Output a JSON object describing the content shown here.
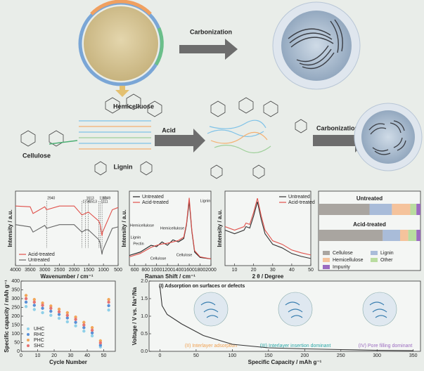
{
  "diagram": {
    "step1": "Carbonization",
    "hemicellulose": "Hemicelluose",
    "cellulose": "Cellulose",
    "lignin": "Lignin",
    "acid": "Acid",
    "step2": "Carbonization"
  },
  "chart_data": [
    {
      "type": "line",
      "xlabel": "Wavenumber / cm⁻¹",
      "ylabel": "Intensity / a.u.",
      "x": [
        4000,
        3500,
        3400,
        3000,
        2940,
        2500,
        2000,
        1735,
        1613,
        1513,
        1161,
        1111,
        1049,
        1030,
        700,
        500
      ],
      "xlim": [
        4000,
        500
      ],
      "ylim": [
        0,
        1
      ],
      "xticks": [
        4000,
        3500,
        3000,
        2500,
        2000,
        1500,
        1000,
        500
      ],
      "peak_labels": [
        2940,
        1735,
        1613,
        1513,
        1161,
        1111,
        1049
      ],
      "legend": "lower left",
      "series": [
        {
          "name": "Acid-treated",
          "color": "#e0504a",
          "values": [
            0.8,
            0.79,
            0.7,
            0.79,
            0.75,
            0.8,
            0.8,
            0.68,
            0.7,
            0.72,
            0.6,
            0.55,
            0.4,
            0.45,
            0.75,
            0.78
          ]
        },
        {
          "name": "Untreated",
          "color": "#666666",
          "values": [
            0.55,
            0.52,
            0.45,
            0.54,
            0.5,
            0.55,
            0.55,
            0.45,
            0.48,
            0.48,
            0.35,
            0.3,
            0.15,
            0.2,
            0.5,
            0.52
          ]
        }
      ]
    },
    {
      "type": "line",
      "xlabel": "Raman Shift / cm⁻¹",
      "ylabel": "Intensity / a.u.",
      "x": [
        500,
        700,
        900,
        1000,
        1100,
        1200,
        1300,
        1400,
        1500,
        1550,
        1600,
        1650,
        1700,
        1800,
        2000
      ],
      "xlim": [
        500,
        2000
      ],
      "ylim": [
        0,
        1.1
      ],
      "xticks": [
        600,
        800,
        1000,
        1200,
        1400,
        1600,
        1800,
        2000
      ],
      "labels": [
        "Lignin",
        "Hemicellulose",
        "Lignin",
        "Pectin",
        "Hemicellulose",
        "Cellulose",
        "Cellulose"
      ],
      "legend": "upper left",
      "series": [
        {
          "name": "Untreated",
          "color": "#222222",
          "values": [
            0.15,
            0.2,
            0.3,
            0.28,
            0.35,
            0.3,
            0.38,
            0.35,
            0.4,
            0.6,
            0.95,
            0.5,
            0.2,
            0.12,
            0.1
          ]
        },
        {
          "name": "Acid-treated",
          "color": "#e0504a",
          "values": [
            0.13,
            0.18,
            0.27,
            0.3,
            0.32,
            0.33,
            0.35,
            0.37,
            0.42,
            0.62,
            1.0,
            0.52,
            0.22,
            0.13,
            0.1
          ]
        }
      ]
    },
    {
      "type": "line",
      "xlabel": "2 θ / Degree",
      "ylabel": "Intensity / a.u.",
      "x": [
        5,
        10,
        15,
        16,
        18,
        20,
        22,
        24,
        26,
        30,
        35,
        40,
        45,
        50
      ],
      "xlim": [
        5,
        50
      ],
      "ylim": [
        0,
        1.05
      ],
      "xticks": [
        10,
        20,
        30,
        40,
        50
      ],
      "legend": "upper right",
      "series": [
        {
          "name": "Untreated",
          "color": "#333333",
          "values": [
            0.5,
            0.45,
            0.5,
            0.55,
            0.53,
            0.7,
            0.9,
            0.65,
            0.45,
            0.3,
            0.25,
            0.17,
            0.13,
            0.1
          ]
        },
        {
          "name": "Acid-treated",
          "color": "#e0504a",
          "values": [
            0.55,
            0.5,
            0.55,
            0.6,
            0.58,
            0.75,
            0.95,
            0.7,
            0.5,
            0.35,
            0.3,
            0.22,
            0.18,
            0.15
          ]
        }
      ]
    },
    {
      "type": "bar",
      "categories": [
        "Untreated",
        "Acid-treated"
      ],
      "xlim": [
        0,
        100
      ],
      "series": [
        {
          "name": "Cellulose",
          "color": "#a9a5a0",
          "values": [
            50,
            63
          ]
        },
        {
          "name": "Lignin",
          "color": "#a9bcd9",
          "values": [
            22,
            17
          ]
        },
        {
          "name": "Hemicellulose",
          "color": "#f5c39c",
          "values": [
            18,
            8
          ]
        },
        {
          "name": "Other",
          "color": "#b9dca0",
          "values": [
            6,
            8
          ]
        },
        {
          "name": "Impurity",
          "color": "#9b6bc0",
          "values": [
            4,
            4
          ]
        }
      ]
    },
    {
      "type": "scatter",
      "xlabel": "Cycle Number",
      "ylabel": "Specific capacity / mAh g⁻¹",
      "x": [
        3,
        8,
        13,
        18,
        23,
        28,
        33,
        38,
        43,
        48,
        53
      ],
      "xlim": [
        0,
        57
      ],
      "ylim": [
        0,
        400
      ],
      "xticks": [
        0,
        10,
        20,
        30,
        40,
        50
      ],
      "yticks": [
        0,
        50,
        100,
        150,
        200,
        250,
        300,
        350,
        400
      ],
      "legend": "lower left",
      "series": [
        {
          "name": "UHC",
          "color": "#8fd0e8",
          "values": [
            255,
            238,
            220,
            205,
            188,
            168,
            145,
            115,
            88,
            25,
            235
          ]
        },
        {
          "name": "RHC",
          "color": "#5a8fd6",
          "values": [
            280,
            262,
            245,
            228,
            210,
            190,
            165,
            135,
            105,
            35,
            260
          ]
        },
        {
          "name": "PHC",
          "color": "#f2a65a",
          "values": [
            318,
            295,
            275,
            258,
            240,
            220,
            195,
            165,
            135,
            60,
            295
          ]
        },
        {
          "name": "SHC",
          "color": "#e57373",
          "values": [
            300,
            280,
            262,
            245,
            225,
            205,
            182,
            150,
            120,
            48,
            280
          ]
        }
      ]
    },
    {
      "type": "line",
      "xlabel": "Specific Capacity / mAh g⁻¹",
      "ylabel": "Voltage / V vs. Na⁺/Na",
      "x": [
        0,
        3,
        10,
        30,
        60,
        100,
        150,
        200,
        250,
        300,
        350
      ],
      "xlim": [
        -15,
        360
      ],
      "ylim": [
        0,
        2.0
      ],
      "xticks": [
        0,
        50,
        100,
        150,
        200,
        250,
        300,
        350
      ],
      "yticks": [
        {
          "value": 0,
          "label": "0.0"
        },
        {
          "value": 0.5,
          "label": "0.5"
        },
        {
          "value": 1,
          "label": "1.0"
        },
        {
          "value": 1.5,
          "label": "1.5"
        },
        {
          "value": 2,
          "label": "2.0"
        }
      ],
      "annotations": [
        "(I) Adsorption on surfaces or defects",
        "(II) Interlayer adsorption",
        "(III) Interlayer insertion dominant",
        "(IV) Pore filling dominant"
      ],
      "series": [
        {
          "name": null,
          "color": "#333333",
          "values": [
            1.85,
            1.3,
            1.05,
            0.78,
            0.45,
            0.2,
            0.1,
            0.07,
            0.05,
            0.03,
            0.02
          ]
        }
      ]
    }
  ]
}
